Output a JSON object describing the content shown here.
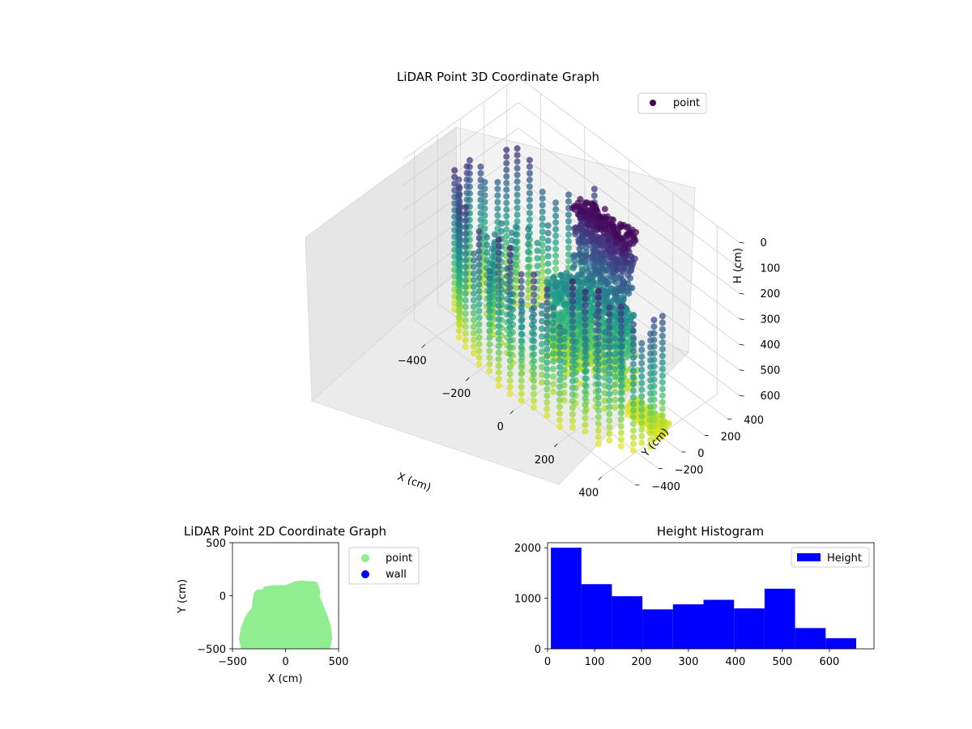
{
  "chart_data": [
    {
      "type": "scatter",
      "projection": "3d",
      "title": "LiDAR Point 3D Coordinate Graph",
      "xlabel": "X (cm)",
      "ylabel": "Y (cm)",
      "zlabel": "H (cm)",
      "xticks": [
        -400,
        -200,
        0,
        200,
        400
      ],
      "yticks": [
        -400,
        -200,
        0,
        200,
        400
      ],
      "zticks": [
        0,
        100,
        200,
        300,
        400,
        500,
        600
      ],
      "xlim": [
        -500,
        500
      ],
      "ylim": [
        -500,
        500
      ],
      "zlim": [
        0,
        660
      ],
      "z_inverted": true,
      "colormap": "viridis",
      "grid": true,
      "legend": {
        "position": "upper-right",
        "entries": [
          {
            "label": "point",
            "color": "#440154"
          }
        ]
      },
      "description_regions": [
        {
          "name": "outer-ring-columns",
          "x_range": [
            -480,
            200
          ],
          "y_range": [
            -480,
            100
          ],
          "h_range": [
            0,
            600
          ]
        },
        {
          "name": "tall-structure",
          "x_range": [
            0,
            250
          ],
          "y_range": [
            0,
            120
          ],
          "h_range": [
            0,
            650
          ]
        },
        {
          "name": "floor-cluster",
          "x_range": [
            200,
            450
          ],
          "y_range": [
            -50,
            50
          ],
          "h_range": [
            600,
            660
          ]
        }
      ]
    },
    {
      "type": "scatter",
      "title": "LiDAR Point 2D Coordinate Graph",
      "xlabel": "X (cm)",
      "ylabel": "Y (cm)",
      "xticks": [
        -500,
        0,
        500
      ],
      "yticks": [
        -500,
        0,
        500
      ],
      "xlim": [
        -500,
        500
      ],
      "ylim": [
        -500,
        500
      ],
      "legend": {
        "position": "outside-right",
        "entries": [
          {
            "label": "point",
            "color": "#90ee90"
          },
          {
            "label": "wall",
            "color": "#0000ff"
          }
        ]
      },
      "point_region_outline": [
        [
          -400,
          -500
        ],
        [
          -420,
          -400
        ],
        [
          -400,
          -300
        ],
        [
          -360,
          -200
        ],
        [
          -300,
          -120
        ],
        [
          -290,
          -40
        ],
        [
          -280,
          20
        ],
        [
          -260,
          40
        ],
        [
          -200,
          40
        ],
        [
          -190,
          70
        ],
        [
          -100,
          80
        ],
        [
          0,
          80
        ],
        [
          50,
          100
        ],
        [
          100,
          120
        ],
        [
          150,
          125
        ],
        [
          200,
          120
        ],
        [
          280,
          115
        ],
        [
          300,
          70
        ],
        [
          310,
          30
        ],
        [
          300,
          0
        ],
        [
          340,
          -100
        ],
        [
          380,
          -200
        ],
        [
          410,
          -300
        ],
        [
          420,
          -400
        ],
        [
          400,
          -500
        ]
      ]
    },
    {
      "type": "bar",
      "subtype": "histogram",
      "title": "Height Histogram",
      "xticks": [
        0,
        100,
        200,
        300,
        400,
        500,
        600
      ],
      "yticks": [
        0,
        1000,
        2000
      ],
      "xlim": [
        0,
        695
      ],
      "ylim": [
        0,
        2100
      ],
      "color": "#0000ff",
      "legend": {
        "position": "upper-right",
        "entries": [
          {
            "label": "Height",
            "color": "#0000ff"
          }
        ]
      },
      "series": [
        {
          "name": "Height",
          "bin_edges": [
            7,
            72,
            137,
            202,
            267,
            332,
            397,
            462,
            527,
            592,
            657
          ],
          "values": [
            2000,
            1280,
            1040,
            780,
            880,
            970,
            800,
            1190,
            410,
            210
          ]
        }
      ]
    }
  ]
}
